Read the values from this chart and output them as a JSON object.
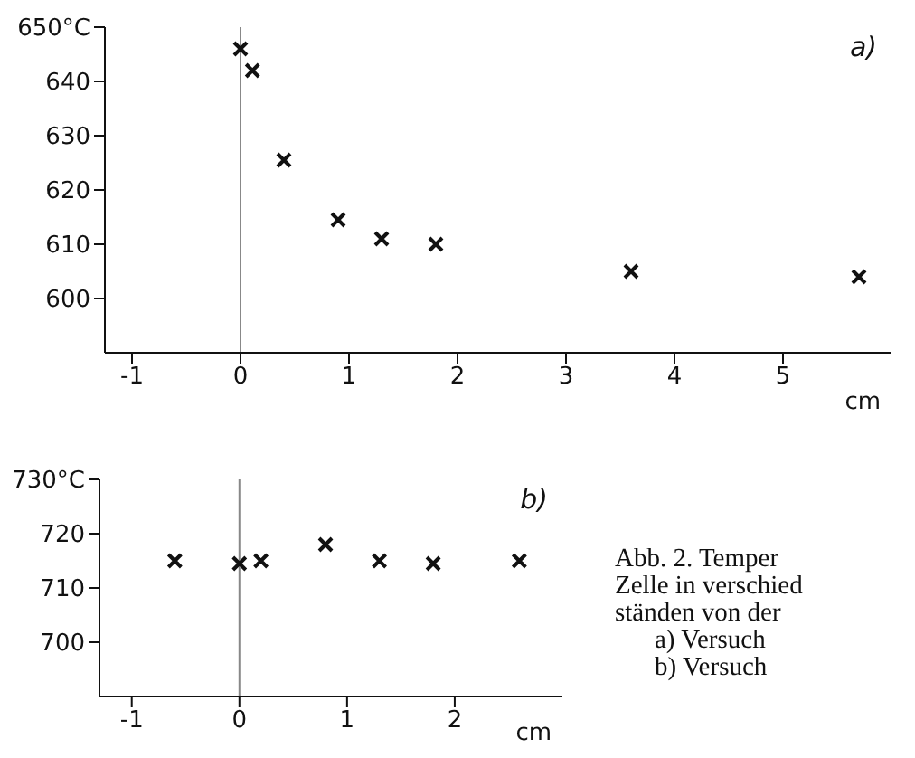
{
  "chart_data": [
    {
      "type": "scatter",
      "x": [
        0,
        0.11,
        0.4,
        0.9,
        1.3,
        1.8,
        3.6,
        5.7
      ],
      "series": [
        {
          "color": "#111111",
          "values": [
            646,
            642,
            625.5,
            614.5,
            611,
            610,
            605,
            604
          ]
        }
      ],
      "xlabel": "cm",
      "xlim": [
        -1.25,
        6
      ],
      "xticks": [
        -1,
        0,
        1,
        2,
        3,
        4,
        5
      ],
      "ylim": [
        590,
        650
      ],
      "yticks": [
        600,
        610,
        620,
        630,
        640,
        {
          "value": 650,
          "label": "650°C"
        }
      ],
      "marker": "cross",
      "grid": false,
      "ref_lines": [
        {
          "axis": "x",
          "value": 0,
          "color": "#888888"
        }
      ],
      "annotations": [
        "a)"
      ]
    },
    {
      "type": "scatter",
      "x": [
        -0.6,
        0,
        0.2,
        0.8,
        1.3,
        1.8,
        2.6
      ],
      "series": [
        {
          "color": "#111111",
          "values": [
            715,
            714.5,
            715,
            718,
            715,
            714.5,
            715
          ]
        }
      ],
      "xlabel": "cm",
      "xlim": [
        -1.3,
        3
      ],
      "xticks": [
        -1,
        0,
        1,
        2
      ],
      "ylim": [
        690,
        730
      ],
      "yticks": [
        700,
        710,
        720,
        {
          "value": 730,
          "label": "730°C"
        }
      ],
      "marker": "cross",
      "grid": false,
      "ref_lines": [
        {
          "axis": "x",
          "value": 0,
          "color": "#888888"
        }
      ],
      "annotations": [
        "b)",
        "Abb. 2. Temper",
        "Zelle in verschied",
        "ständen von der",
        "a) Versuch",
        "b) Versuch"
      ]
    }
  ]
}
